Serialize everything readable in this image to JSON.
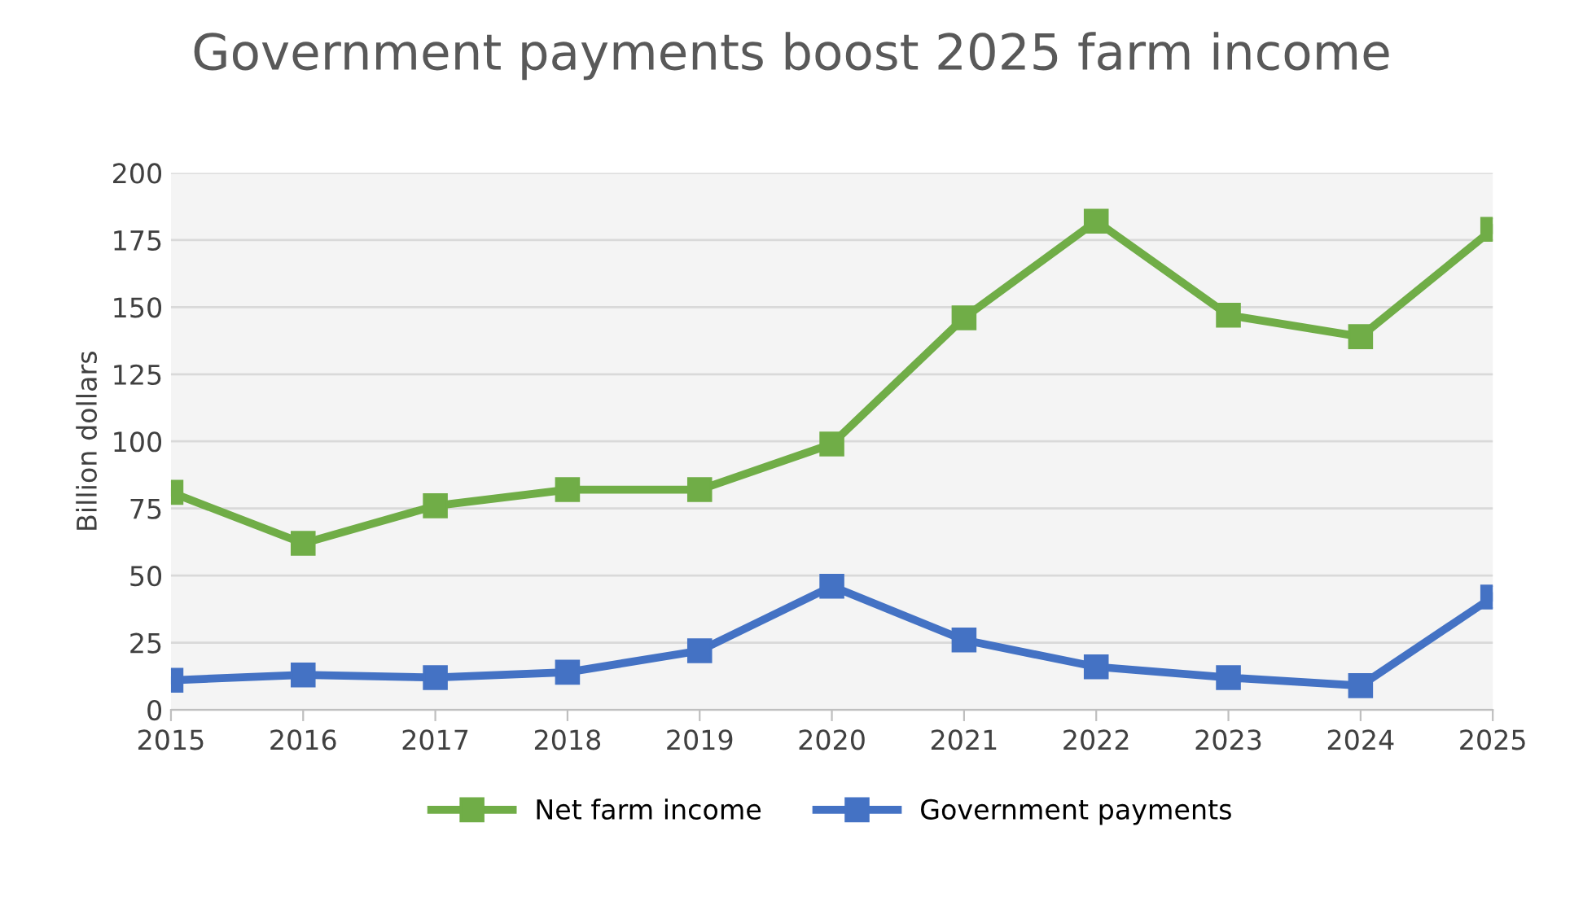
{
  "chart_data": {
    "type": "line",
    "title": "Government payments boost 2025 farm income",
    "ylabel": "Billion dollars",
    "x": [
      2015,
      2016,
      2017,
      2018,
      2019,
      2020,
      2021,
      2022,
      2023,
      2024,
      2025
    ],
    "series": [
      {
        "name": "Net farm income",
        "color": "#70ad47",
        "values": [
          81,
          62,
          76,
          82,
          82,
          99,
          146,
          182,
          147,
          139,
          179
        ]
      },
      {
        "name": "Government payments",
        "color": "#4472c4",
        "values": [
          11,
          13,
          12,
          14,
          22,
          46,
          26,
          16,
          12,
          9,
          42
        ]
      }
    ],
    "xlim": [
      2015,
      2025
    ],
    "xticks": [
      2015,
      2016,
      2017,
      2018,
      2019,
      2020,
      2021,
      2022,
      2023,
      2024,
      2025
    ],
    "ylim": [
      0,
      200
    ],
    "yticks": [
      0,
      25,
      50,
      75,
      100,
      125,
      150,
      175,
      200
    ],
    "grid": "y",
    "legend": "bottom",
    "marker": "square",
    "line_style": "solid"
  }
}
